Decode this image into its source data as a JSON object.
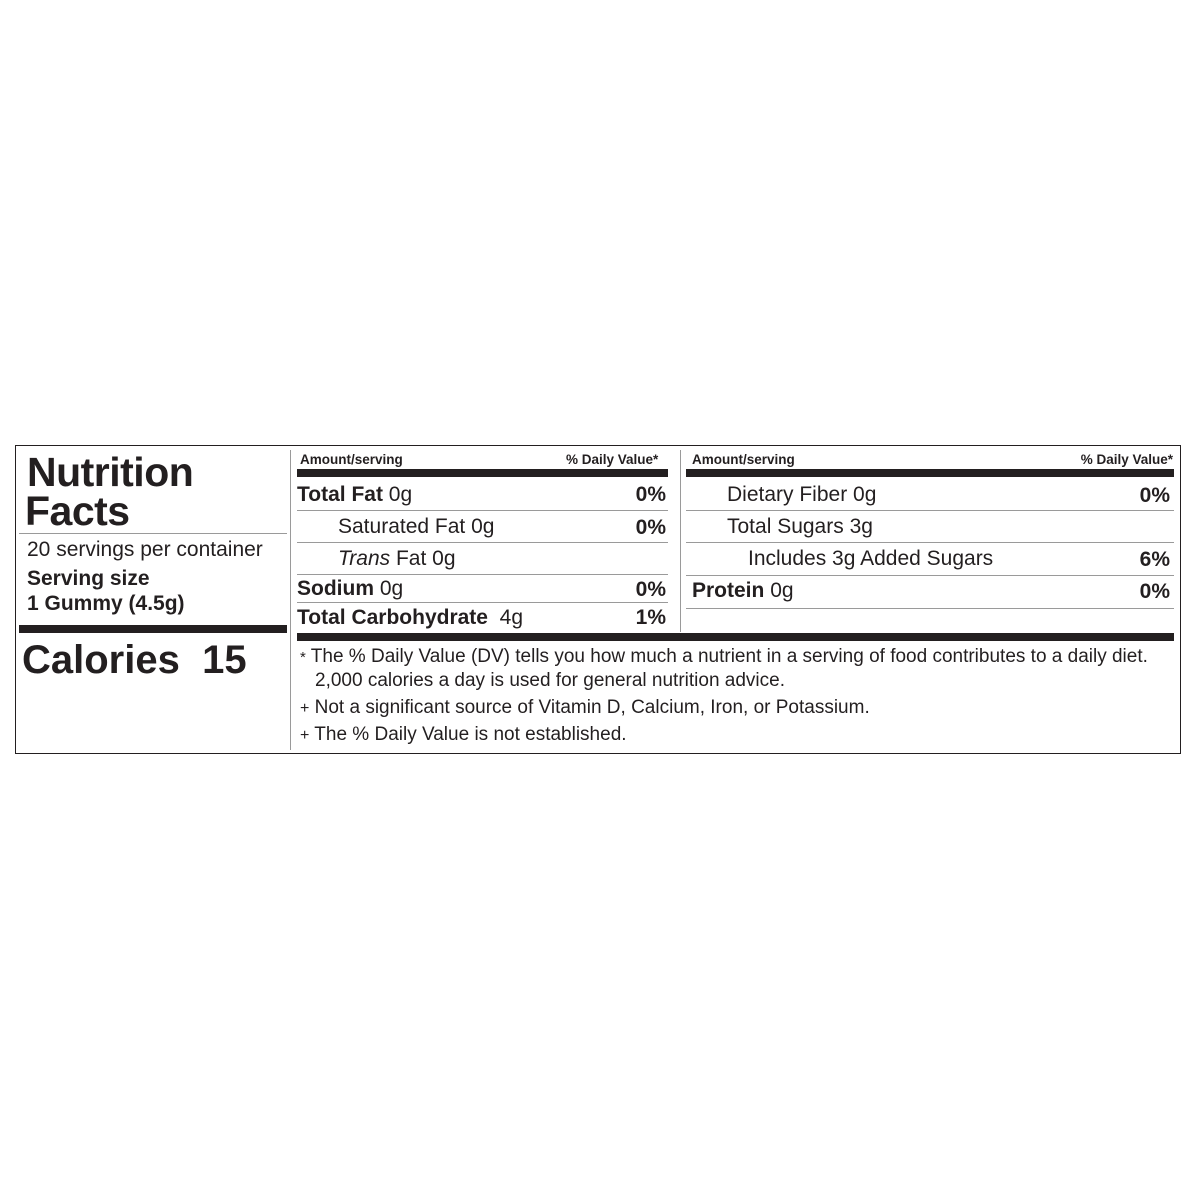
{
  "title_line1": "Nutrition",
  "title_line2": "Facts",
  "servings_per_container": "20 servings per container",
  "serving_size_label": "Serving size",
  "serving_size_value": "1 Gummy (4.5g)",
  "calories_label": "Calories",
  "calories_value": "15",
  "header": {
    "amount": "Amount/serving",
    "dv": "% Daily Value*"
  },
  "left_rows": [
    {
      "name": "Total Fat",
      "amount": "0g",
      "dv": "0%"
    },
    {
      "name": "Saturated Fat 0g",
      "dv": "0%"
    },
    {
      "name_italic": "Trans",
      "name": "Fat 0g"
    },
    {
      "name": "Sodium",
      "amount": "0g",
      "dv": "0%"
    },
    {
      "name": "Total Carbohydrate",
      "amount": "4g",
      "dv": "1%"
    }
  ],
  "right_rows": [
    {
      "name": "Dietary Fiber 0g",
      "dv": "0%"
    },
    {
      "name": "Total Sugars 3g"
    },
    {
      "name": "Includes 3g Added Sugars",
      "dv": "6%"
    },
    {
      "name": "Protein",
      "amount": "0g",
      "dv": "0%"
    }
  ],
  "footnotes": [
    {
      "mark": "*",
      "line1": "The % Daily Value (DV) tells you how much a nutrient in a serving of food contributes to a daily diet.",
      "line2": "2,000 calories a day is used for general nutrition advice."
    },
    {
      "mark": "+",
      "line1": "Not a significant source of Vitamin D, Calcium, Iron, or Potassium."
    },
    {
      "mark": "+",
      "line1": "The % Daily Value is not established."
    }
  ]
}
